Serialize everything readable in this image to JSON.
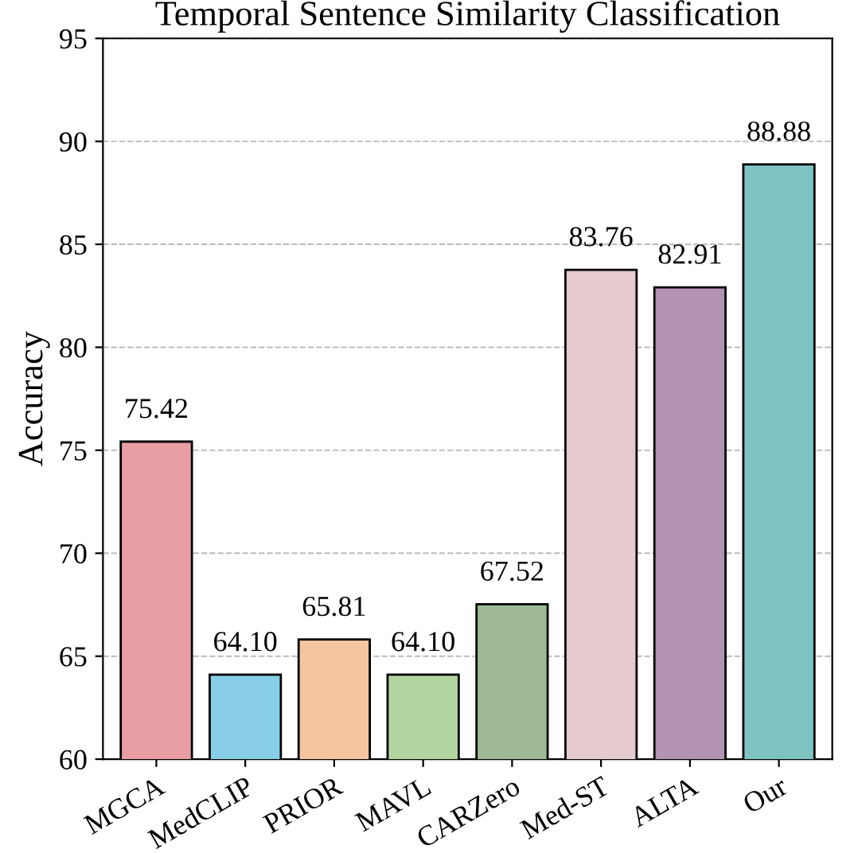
{
  "chart_data": {
    "type": "bar",
    "title": "Temporal Sentence Similarity Classification",
    "ylabel": "Accuracy",
    "categories": [
      "MGCA",
      "MedCLIP",
      "PRIOR",
      "MAVL",
      "CARZero",
      "Med-ST",
      "ALTA",
      "Our"
    ],
    "values": [
      75.42,
      64.1,
      65.81,
      64.1,
      67.52,
      83.76,
      82.91,
      88.88
    ],
    "value_labels": [
      "75.42",
      "64.10",
      "65.81",
      "64.10",
      "67.52",
      "83.76",
      "82.91",
      "88.88"
    ],
    "colors": [
      "#e89ea3",
      "#87cee6",
      "#f5c5a0",
      "#b2d5a0",
      "#9eb993",
      "#e5cbcf",
      "#b392b4",
      "#7fc2c2"
    ],
    "ylim": [
      60,
      95
    ],
    "yticks": [
      60,
      65,
      70,
      75,
      80,
      85,
      90,
      95
    ],
    "grid": "y",
    "legend": false
  }
}
